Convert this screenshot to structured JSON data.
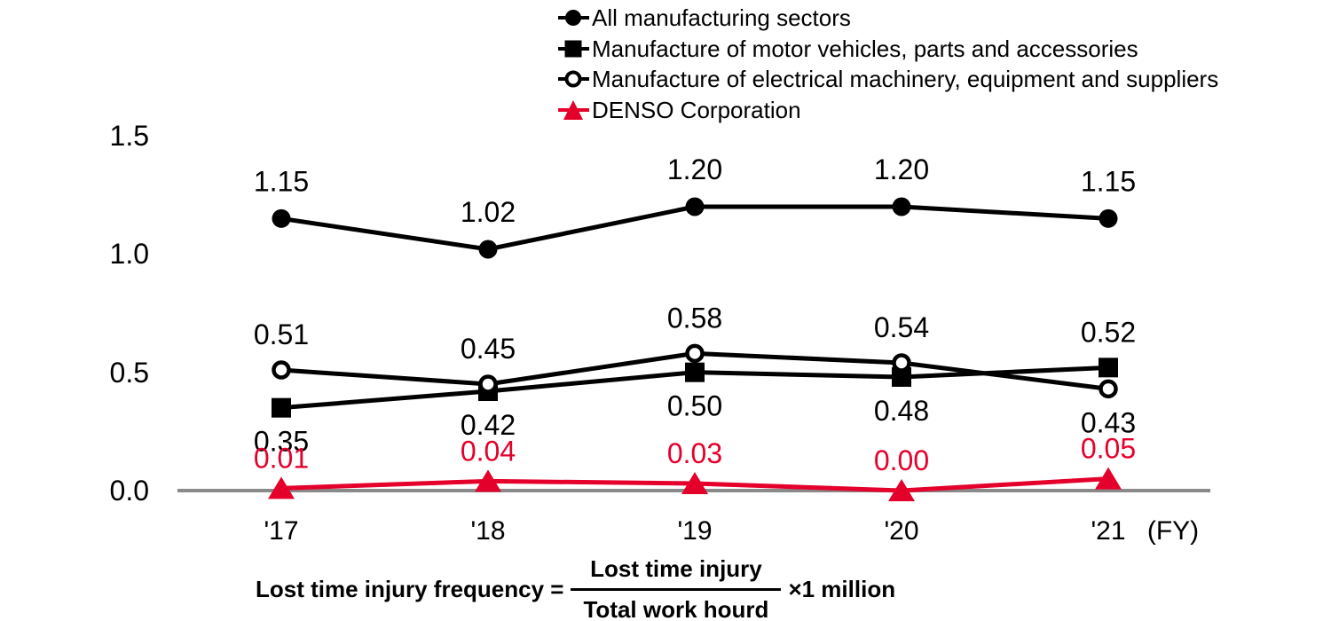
{
  "colors": {
    "series_black": "#000000",
    "denso_red": "#e4002b",
    "axis_gray": "#8a8a8a",
    "background": "#ffffff"
  },
  "chart_data": {
    "type": "line",
    "categories": [
      "'17",
      "'18",
      "'19",
      "'20",
      "'21"
    ],
    "x_axis_unit": "(FY)",
    "y_ticks": [
      1.5,
      1.0,
      0.5,
      0.0
    ],
    "ylim": [
      0,
      1.5
    ],
    "grid": false,
    "legend_position": "top-right",
    "series": [
      {
        "name": "All manufacturing sectors",
        "marker": "circle-filled",
        "color": "#000000",
        "label_color": "#000000",
        "label_side": "above",
        "values": [
          1.15,
          1.02,
          1.2,
          1.2,
          1.15
        ]
      },
      {
        "name": "Manufacture of motor vehicles, parts and accessories",
        "marker": "square-filled",
        "color": "#000000",
        "label_color": "#000000",
        "label_side": "auto",
        "values": [
          0.35,
          0.42,
          0.5,
          0.48,
          0.52
        ]
      },
      {
        "name": "Manufacture of electrical machinery, equipment and suppliers",
        "marker": "circle-open",
        "color": "#000000",
        "label_color": "#000000",
        "label_side": "auto",
        "values": [
          0.51,
          0.45,
          0.58,
          0.54,
          0.43
        ]
      },
      {
        "name": "DENSO Corporation",
        "marker": "triangle-filled",
        "color": "#e4002b",
        "label_color": "#e4002b",
        "label_side": "above-near",
        "values": [
          0.01,
          0.04,
          0.03,
          0.0,
          0.05
        ]
      }
    ]
  },
  "formula": {
    "lhs": "Lost time injury frequency =",
    "numerator": "Lost time injury",
    "denominator": "Total work hourd",
    "rhs": "×1 million"
  }
}
